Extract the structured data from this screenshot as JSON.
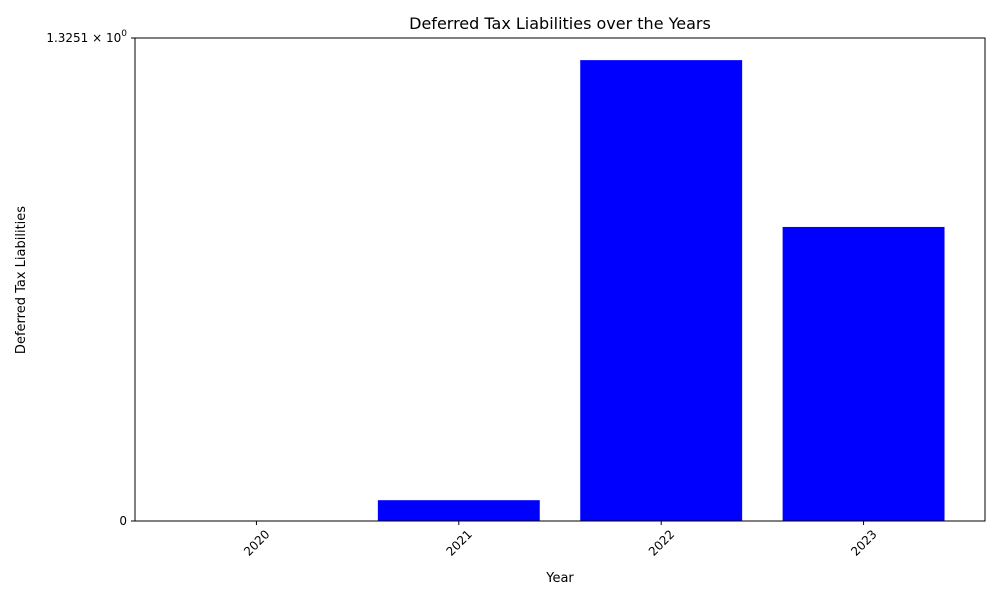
{
  "chart_data": {
    "type": "bar",
    "title": "Deferred Tax Liabilities over the Years",
    "xlabel": "Year",
    "ylabel": "Deferred Tax Liabilities",
    "categories": [
      "2020",
      "2021",
      "2022",
      "2023"
    ],
    "values": [
      0,
      0.0571,
      1.2644,
      0.8067
    ],
    "ylim": [
      0,
      1.3251
    ],
    "yticks": [
      {
        "value": 0,
        "base": "0",
        "exp": ""
      },
      {
        "value": 1.3251,
        "base": "1.3251 × 10",
        "exp": "0"
      }
    ],
    "grid": false,
    "bar_color": "#0000ff"
  }
}
